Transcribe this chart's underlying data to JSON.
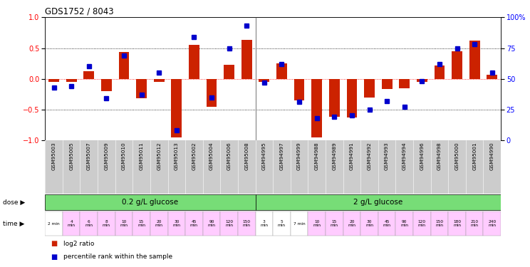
{
  "title": "GDS1752 / 8043",
  "samples": [
    "GSM95003",
    "GSM95005",
    "GSM95007",
    "GSM95009",
    "GSM95010",
    "GSM95011",
    "GSM95012",
    "GSM95013",
    "GSM95002",
    "GSM95004",
    "GSM95006",
    "GSM95008",
    "GSM94995",
    "GSM94997",
    "GSM94999",
    "GSM94988",
    "GSM94989",
    "GSM94991",
    "GSM94992",
    "GSM94993",
    "GSM94994",
    "GSM94996",
    "GSM94998",
    "GSM95000",
    "GSM95001",
    "GSM94990"
  ],
  "log2_ratio": [
    -0.05,
    -0.05,
    0.12,
    -0.2,
    0.44,
    -0.32,
    -0.05,
    -0.95,
    0.55,
    -0.46,
    0.23,
    0.63,
    -0.05,
    0.25,
    -0.35,
    -0.95,
    -0.62,
    -0.63,
    -0.3,
    -0.17,
    -0.15,
    -0.05,
    0.22,
    0.45,
    0.62,
    0.07
  ],
  "percentile": [
    43,
    44,
    60,
    34,
    69,
    37,
    55,
    8,
    84,
    35,
    75,
    93,
    47,
    62,
    31,
    18,
    19,
    20,
    25,
    32,
    27,
    48,
    62,
    75,
    78,
    55
  ],
  "dose_labels": [
    "0.2 g/L glucose",
    "2 g/L glucose"
  ],
  "dose_split": 12,
  "time_labels_g02": [
    "2 min",
    "4\nmin",
    "6\nmin",
    "8\nmin",
    "10\nmin",
    "15\nmin",
    "20\nmin",
    "30\nmin",
    "45\nmin",
    "90\nmin",
    "120\nmin",
    "150\nmin"
  ],
  "time_labels_g2": [
    "3\nmin",
    "5\nmin",
    "7 min",
    "10\nmin",
    "15\nmin",
    "20\nmin",
    "30\nmin",
    "45\nmin",
    "90\nmin",
    "120\nmin",
    "150\nmin",
    "180\nmin",
    "210\nmin",
    "240\nmin"
  ],
  "time_bg_g02": [
    "#ffffff",
    "#ffccff",
    "#ffccff",
    "#ffccff",
    "#ffccff",
    "#ffccff",
    "#ffccff",
    "#ffccff",
    "#ffccff",
    "#ffccff",
    "#ffccff",
    "#ffccff"
  ],
  "time_bg_g2": [
    "#ffffff",
    "#ffffff",
    "#ffffff",
    "#ffccff",
    "#ffccff",
    "#ffccff",
    "#ffccff",
    "#ffccff",
    "#ffccff",
    "#ffccff",
    "#ffccff",
    "#ffccff",
    "#ffccff",
    "#ffccff"
  ],
  "bar_color": "#cc2200",
  "dot_color": "#0000cc",
  "ylim": [
    -1,
    1
  ],
  "y2lim": [
    0,
    100
  ],
  "y_ticks": [
    -1,
    -0.5,
    0,
    0.5,
    1
  ],
  "y2_ticks": [
    0,
    25,
    50,
    75,
    100
  ],
  "background_color": "#ffffff",
  "plot_bg": "#ffffff",
  "sample_label_bg": "#cccccc",
  "green_color": "#66dd66",
  "dose_green": "#77dd77"
}
